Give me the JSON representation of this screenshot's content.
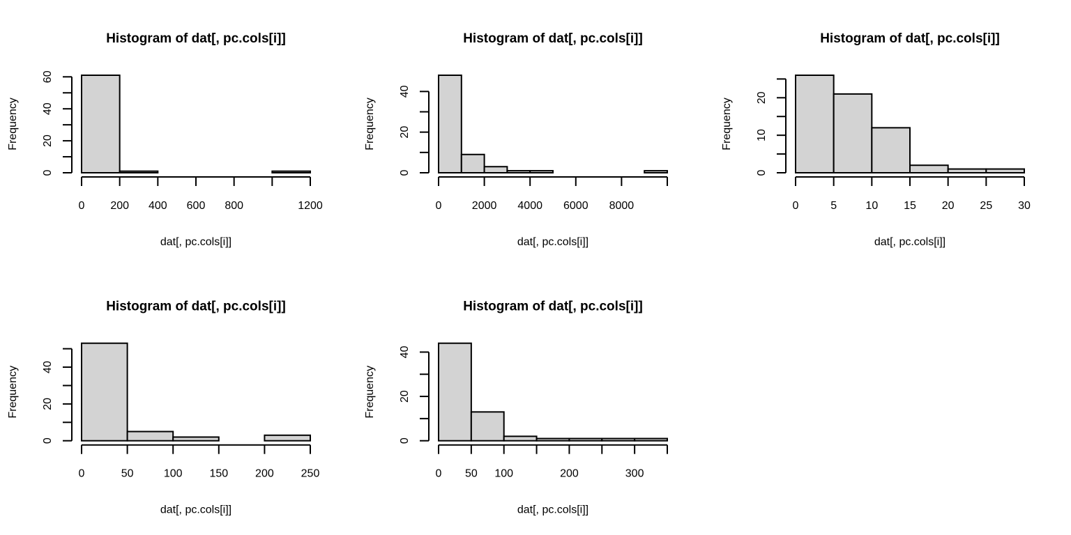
{
  "chart_data": [
    {
      "type": "bar",
      "title": "Histogram of dat[, pc.cols[i]]",
      "xlabel": "dat[, pc.cols[i]]",
      "ylabel": "Frequency",
      "breaks": [
        0,
        200,
        400,
        600,
        800,
        1000,
        1200
      ],
      "counts": [
        61,
        1,
        0,
        0,
        0,
        1
      ],
      "xlim": [
        0,
        1200
      ],
      "xticks": [
        0,
        200,
        400,
        600,
        800,
        1000,
        1200
      ],
      "xtick_labels": [
        "0",
        "200",
        "400",
        "600",
        "800",
        "",
        "1200"
      ],
      "yticks": [
        0,
        10,
        20,
        30,
        40,
        50,
        60
      ],
      "ytick_labels": [
        "0",
        "",
        "20",
        "",
        "40",
        "",
        "60"
      ],
      "bar_color": "#d3d3d3",
      "grid": false
    },
    {
      "type": "bar",
      "title": "Histogram of dat[, pc.cols[i]]",
      "xlabel": "dat[, pc.cols[i]]",
      "ylabel": "Frequency",
      "breaks": [
        0,
        1000,
        2000,
        3000,
        4000,
        5000,
        6000,
        7000,
        8000,
        9000,
        10000
      ],
      "counts": [
        48,
        9,
        3,
        1,
        1,
        0,
        0,
        0,
        0,
        1
      ],
      "xlim": [
        0,
        10000
      ],
      "xticks": [
        0,
        2000,
        4000,
        6000,
        8000,
        10000
      ],
      "xtick_labels": [
        "0",
        "2000",
        "4000",
        "6000",
        "8000",
        ""
      ],
      "yticks": [
        0,
        10,
        20,
        30,
        40
      ],
      "ytick_labels": [
        "0",
        "",
        "20",
        "",
        "40"
      ],
      "bar_color": "#d3d3d3",
      "grid": false
    },
    {
      "type": "bar",
      "title": "Histogram of dat[, pc.cols[i]]",
      "xlabel": "dat[, pc.cols[i]]",
      "ylabel": "Frequency",
      "breaks": [
        0,
        5,
        10,
        15,
        20,
        25,
        30
      ],
      "counts": [
        26,
        21,
        12,
        2,
        1,
        1
      ],
      "xlim": [
        0,
        30
      ],
      "xticks": [
        0,
        5,
        10,
        15,
        20,
        25,
        30
      ],
      "xtick_labels": [
        "0",
        "5",
        "10",
        "15",
        "20",
        "25",
        "30"
      ],
      "yticks": [
        0,
        5,
        10,
        15,
        20,
        25
      ],
      "ytick_labels": [
        "0",
        "",
        "10",
        "",
        "20",
        ""
      ],
      "bar_color": "#d3d3d3",
      "grid": false
    },
    {
      "type": "bar",
      "title": "Histogram of dat[, pc.cols[i]]",
      "xlabel": "dat[, pc.cols[i]]",
      "ylabel": "Frequency",
      "breaks": [
        0,
        50,
        100,
        150,
        200,
        250
      ],
      "counts": [
        53,
        5,
        2,
        0,
        3
      ],
      "xlim": [
        0,
        250
      ],
      "xticks": [
        0,
        50,
        100,
        150,
        200,
        250
      ],
      "xtick_labels": [
        "0",
        "50",
        "100",
        "150",
        "200",
        "250"
      ],
      "yticks": [
        0,
        10,
        20,
        30,
        40,
        50
      ],
      "ytick_labels": [
        "0",
        "",
        "20",
        "",
        "40",
        ""
      ],
      "bar_color": "#d3d3d3",
      "grid": false
    },
    {
      "type": "bar",
      "title": "Histogram of dat[, pc.cols[i]]",
      "xlabel": "dat[, pc.cols[i]]",
      "ylabel": "Frequency",
      "breaks": [
        0,
        50,
        100,
        150,
        200,
        250,
        300,
        350
      ],
      "counts": [
        44,
        13,
        2,
        1,
        1,
        1,
        1
      ],
      "xlim": [
        0,
        350
      ],
      "xticks": [
        0,
        50,
        100,
        150,
        200,
        250,
        300,
        350
      ],
      "xtick_labels": [
        "0",
        "50",
        "100",
        "",
        "200",
        "",
        "300",
        ""
      ],
      "yticks": [
        0,
        10,
        20,
        30,
        40
      ],
      "ytick_labels": [
        "0",
        "",
        "20",
        "",
        "40"
      ],
      "bar_color": "#d3d3d3",
      "grid": false
    }
  ]
}
